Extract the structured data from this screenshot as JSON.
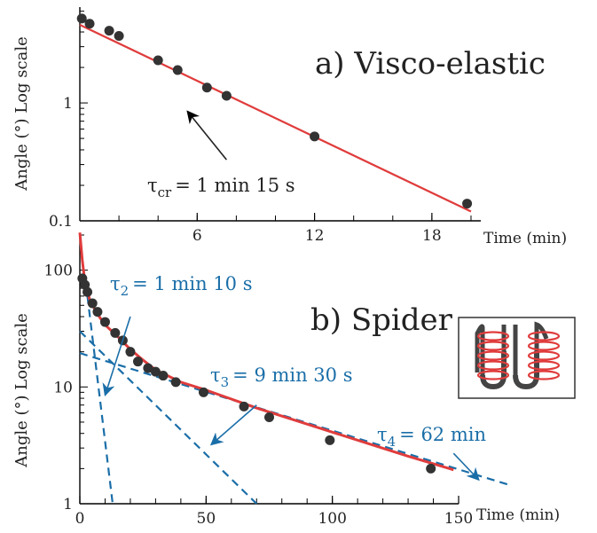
{
  "chart_data": [
    {
      "type": "scatter",
      "title": "a) Visco-elastic",
      "xlabel": "Time (min)",
      "ylabel": "Angle (°) Log scale",
      "yscale": "log",
      "xlim": [
        0,
        20.5
      ],
      "ylim": [
        0.1,
        6.5
      ],
      "x_ticks": [
        6,
        12,
        18
      ],
      "y_ticks": [
        1,
        0.1
      ],
      "y_tick_labels": [
        "1",
        "0.1"
      ],
      "points": {
        "x": [
          0.1,
          0.5,
          1.5,
          2.0,
          4.0,
          5.0,
          6.5,
          7.5,
          12.0,
          19.8
        ],
        "y": [
          5.2,
          4.7,
          4.1,
          3.7,
          2.3,
          1.9,
          1.35,
          1.15,
          0.52,
          0.14
        ]
      },
      "fit_line": {
        "x": [
          0,
          20.0
        ],
        "y": [
          4.6,
          0.12
        ]
      },
      "annotations": [
        {
          "tau": "τ",
          "subscript": "cr",
          "value": "= 1 min 15 s",
          "arrow_from": [
            7.5,
            0.33
          ],
          "arrow_to": [
            5.5,
            0.85
          ]
        }
      ],
      "colors": {
        "points": "#333333",
        "fit": "#e03c3c",
        "axis": "#000000"
      }
    },
    {
      "type": "scatter",
      "title": "b) Spider",
      "xlabel": "Time (min)",
      "ylabel": "Angle (°) Log scale",
      "yscale": "log",
      "xlim": [
        0,
        150
      ],
      "ylim": [
        1,
        200
      ],
      "x_ticks": [
        0,
        50,
        100,
        150
      ],
      "y_ticks": [
        100,
        10,
        1
      ],
      "y_tick_labels": [
        "100",
        "10",
        "1"
      ],
      "points": {
        "x": [
          1,
          2,
          3,
          5,
          7,
          10,
          14,
          17,
          20,
          23,
          27,
          30,
          33,
          38,
          49,
          65,
          75,
          99,
          139
        ],
        "y": [
          85,
          75,
          65,
          52,
          44,
          36,
          29,
          25,
          20,
          16.5,
          14.5,
          13.5,
          12.5,
          11.0,
          9.0,
          6.8,
          5.5,
          3.5,
          2.0
        ]
      },
      "fit_curve": {
        "x": [
          0,
          1,
          2,
          4,
          7,
          10,
          15,
          20,
          25,
          30,
          40,
          50,
          70,
          100,
          130,
          148
        ],
        "y": [
          210,
          120,
          80,
          55,
          42,
          34,
          27,
          21,
          17,
          14,
          11,
          9.4,
          6.6,
          4.1,
          2.55,
          1.95
        ]
      },
      "dashed_lines": [
        {
          "x": [
            3,
            13
          ],
          "y": [
            60,
            1
          ]
        },
        {
          "x": [
            0,
            70
          ],
          "y": [
            30,
            1
          ]
        },
        {
          "x": [
            0,
            170
          ],
          "y": [
            19.5,
            1.45
          ]
        }
      ],
      "annotations": [
        {
          "tau": "τ",
          "subscript": "2",
          "value": "= 1 min 10 s",
          "arrow_from": [
            20,
            40
          ],
          "arrow_to": [
            10,
            8.5
          ]
        },
        {
          "tau": "τ",
          "subscript": "3",
          "value": "= 9 min 30 s",
          "arrow_from": [
            70,
            7
          ],
          "arrow_to": [
            52,
            3.2
          ]
        },
        {
          "tau": "τ",
          "subscript": "4",
          "value": "= 62 min",
          "arrow_from": [
            148,
            2.7
          ],
          "arrow_to": [
            158,
            1.6
          ]
        }
      ],
      "inset": {
        "icon": "helical-coil-springs-icon"
      },
      "colors": {
        "points": "#333333",
        "fit": "#e03c3c",
        "dashed": "#1a6ea8",
        "annotation": "#1a6ea8",
        "axis": "#000000"
      }
    }
  ]
}
